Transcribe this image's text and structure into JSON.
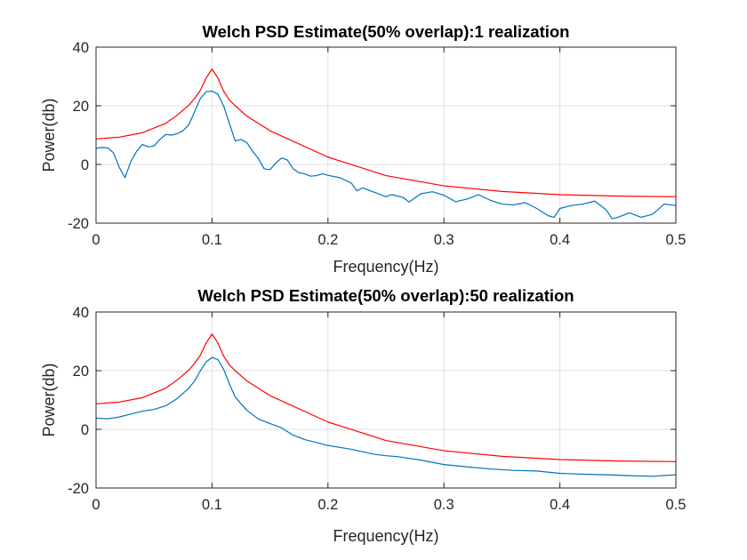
{
  "chart_data": [
    {
      "type": "line",
      "title": "Welch PSD Estimate(50% overlap):1 realization",
      "xlabel": "Frequency(Hz)",
      "ylabel": "Power(db)",
      "xlim": [
        0,
        0.5
      ],
      "ylim": [
        -20,
        40
      ],
      "xticks": [
        0,
        0.1,
        0.2,
        0.3,
        0.4,
        0.5
      ],
      "xtick_labels": [
        "0",
        "0.1",
        "0.2",
        "0.3",
        "0.4",
        "0.5"
      ],
      "yticks": [
        -20,
        0,
        20,
        40
      ],
      "ytick_labels": [
        "-20",
        "0",
        "20",
        "40"
      ],
      "grid": true,
      "series": [
        {
          "color": "#d95319",
          "line_color": "#ff0000",
          "x": [
            0,
            0.02,
            0.04,
            0.06,
            0.07,
            0.08,
            0.085,
            0.09,
            0.095,
            0.1,
            0.105,
            0.11,
            0.115,
            0.12,
            0.13,
            0.15,
            0.2,
            0.25,
            0.3,
            0.35,
            0.4,
            0.45,
            0.5
          ],
          "y": [
            8.7,
            9.3,
            10.8,
            14,
            16.8,
            20.2,
            22.5,
            25.3,
            29.5,
            32.5,
            29.5,
            25,
            22,
            20,
            16.5,
            11.5,
            2.5,
            -3.8,
            -7.3,
            -9.2,
            -10.3,
            -10.8,
            -11
          ]
        },
        {
          "color": "#0072bd",
          "x": [
            0,
            0.005,
            0.01,
            0.015,
            0.02,
            0.025,
            0.03,
            0.035,
            0.04,
            0.045,
            0.05,
            0.055,
            0.06,
            0.065,
            0.07,
            0.075,
            0.08,
            0.085,
            0.09,
            0.095,
            0.1,
            0.105,
            0.11,
            0.115,
            0.12,
            0.125,
            0.13,
            0.135,
            0.14,
            0.145,
            0.15,
            0.155,
            0.16,
            0.165,
            0.17,
            0.175,
            0.18,
            0.185,
            0.19,
            0.195,
            0.2,
            0.21,
            0.22,
            0.225,
            0.23,
            0.24,
            0.25,
            0.255,
            0.26,
            0.265,
            0.27,
            0.28,
            0.29,
            0.3,
            0.31,
            0.32,
            0.33,
            0.34,
            0.35,
            0.36,
            0.37,
            0.38,
            0.39,
            0.395,
            0.4,
            0.41,
            0.42,
            0.43,
            0.44,
            0.445,
            0.45,
            0.46,
            0.47,
            0.48,
            0.49,
            0.5
          ],
          "y": [
            5.5,
            5.8,
            5.7,
            4,
            -1,
            -4.5,
            1,
            4.5,
            6.8,
            6,
            6.3,
            8.5,
            10.2,
            10,
            10.5,
            11.5,
            13.5,
            18,
            22.5,
            24.8,
            25,
            24,
            20,
            14,
            8,
            8.5,
            7.5,
            4.5,
            2,
            -1.5,
            -1.8,
            0.5,
            2.2,
            1.5,
            -1.5,
            -2.8,
            -3.2,
            -4,
            -3.8,
            -3.2,
            -3.7,
            -4.5,
            -6.3,
            -9,
            -8,
            -9.5,
            -11,
            -10.3,
            -10.8,
            -11.3,
            -12.8,
            -10,
            -9.3,
            -10.5,
            -12.7,
            -11.8,
            -10.3,
            -12.2,
            -13.5,
            -13.8,
            -13,
            -15,
            -17.5,
            -18,
            -15,
            -14,
            -13.5,
            -12.5,
            -15.5,
            -18.5,
            -18,
            -16.5,
            -18,
            -17,
            -13.5,
            -14
          ]
        }
      ]
    },
    {
      "type": "line",
      "title": "Welch PSD Estimate(50% overlap):50 realization",
      "xlabel": "Frequency(Hz)",
      "ylabel": "Power(db)",
      "xlim": [
        0,
        0.5
      ],
      "ylim": [
        -20,
        40
      ],
      "xticks": [
        0,
        0.1,
        0.2,
        0.3,
        0.4,
        0.5
      ],
      "xtick_labels": [
        "0",
        "0.1",
        "0.2",
        "0.3",
        "0.4",
        "0.5"
      ],
      "yticks": [
        -20,
        0,
        20,
        40
      ],
      "ytick_labels": [
        "-20",
        "0",
        "20",
        "40"
      ],
      "grid": true,
      "series": [
        {
          "color": "#d95319",
          "line_color": "#ff0000",
          "x": [
            0,
            0.02,
            0.04,
            0.06,
            0.07,
            0.08,
            0.085,
            0.09,
            0.095,
            0.1,
            0.105,
            0.11,
            0.115,
            0.12,
            0.13,
            0.15,
            0.2,
            0.25,
            0.3,
            0.35,
            0.4,
            0.45,
            0.5
          ],
          "y": [
            8.7,
            9.3,
            10.8,
            14,
            16.8,
            20.2,
            22.5,
            25.3,
            29.5,
            32.5,
            29.5,
            25,
            22,
            20,
            16.5,
            11.5,
            2.5,
            -3.8,
            -7.3,
            -9.2,
            -10.3,
            -10.8,
            -11
          ]
        },
        {
          "color": "#0072bd",
          "x": [
            0,
            0.01,
            0.02,
            0.03,
            0.04,
            0.05,
            0.06,
            0.07,
            0.08,
            0.085,
            0.09,
            0.095,
            0.1,
            0.105,
            0.11,
            0.115,
            0.12,
            0.13,
            0.14,
            0.15,
            0.16,
            0.17,
            0.18,
            0.19,
            0.2,
            0.22,
            0.24,
            0.25,
            0.26,
            0.28,
            0.3,
            0.32,
            0.34,
            0.36,
            0.38,
            0.4,
            0.42,
            0.44,
            0.46,
            0.48,
            0.5
          ],
          "y": [
            3.8,
            3.6,
            4.2,
            5.2,
            6.2,
            6.8,
            8,
            10.5,
            14,
            16.5,
            20,
            23,
            24.5,
            23.8,
            20.5,
            15.5,
            11,
            6.5,
            3.5,
            2,
            0.5,
            -2,
            -3.5,
            -4.5,
            -5.5,
            -6.8,
            -8.5,
            -9,
            -9.3,
            -10.5,
            -12,
            -12.8,
            -13.5,
            -14,
            -14.2,
            -15,
            -15.3,
            -15.5,
            -15.8,
            -16,
            -15.5
          ]
        }
      ]
    }
  ]
}
